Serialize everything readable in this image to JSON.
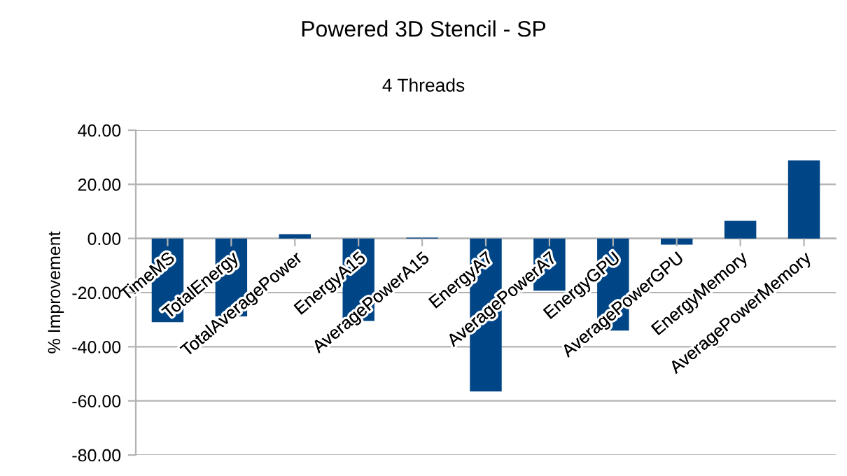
{
  "chart_data": {
    "type": "bar",
    "title": "Powered 3D Stencil - SP",
    "subtitle": "4 Threads",
    "ylabel": "% Improvement",
    "categories": [
      "TimeMS",
      "TotalEnergy",
      "TotalAveragePower",
      "EnergyA15",
      "AveragePowerA15",
      "EnergyA7",
      "AveragePowerA7",
      "EnergyGPU",
      "AveragePowerGPU",
      "EnergyMemory",
      "AveragePowerMemory"
    ],
    "values": [
      -30.9,
      -28.8,
      1.6,
      -30.5,
      0.3,
      -56.5,
      -19.3,
      -34.0,
      -2.3,
      6.5,
      28.8
    ],
    "color": "#004586",
    "ylim": [
      -80,
      40
    ],
    "yticks": [
      {
        "value": -80,
        "label": "-80.00"
      },
      {
        "value": -60,
        "label": "-60.00"
      },
      {
        "value": -40,
        "label": "-40.00"
      },
      {
        "value": -20,
        "label": "-20.00"
      },
      {
        "value": 0,
        "label": "0.00"
      },
      {
        "value": 20,
        "label": "20.00"
      },
      {
        "value": 40,
        "label": "40.00"
      }
    ],
    "grid": "y",
    "legend": false
  }
}
